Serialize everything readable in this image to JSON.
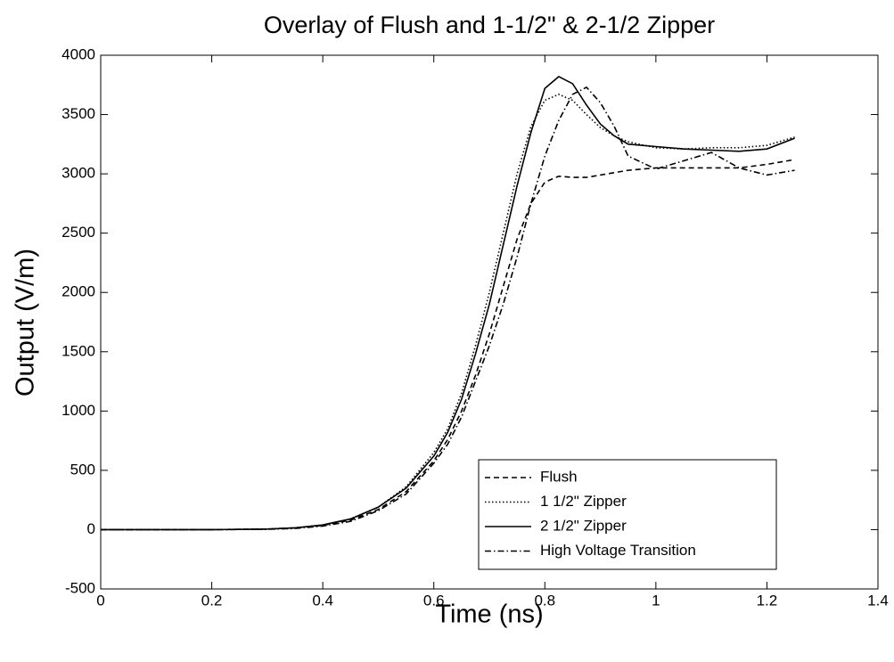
{
  "chart_data": {
    "type": "line",
    "title": "Overlay of Flush and 1-1/2\" & 2-1/2 Zipper",
    "x_label": "Time (ns)",
    "y_label": "Output (V/m)",
    "x": [
      0,
      0.1,
      0.2,
      0.3,
      0.35,
      0.4,
      0.45,
      0.5,
      0.55,
      0.6,
      0.625,
      0.65,
      0.675,
      0.7,
      0.725,
      0.75,
      0.775,
      0.8,
      0.825,
      0.85,
      0.875,
      0.9,
      0.925,
      0.95,
      1.0,
      1.05,
      1.1,
      1.15,
      1.2,
      1.25
    ],
    "series": [
      {
        "name": "Flush",
        "color": "#000000",
        "linestyle": "dashed",
        "values": [
          0,
          0,
          0,
          5,
          15,
          35,
          80,
          170,
          320,
          580,
          760,
          1000,
          1300,
          1650,
          2050,
          2450,
          2750,
          2930,
          2980,
          2970,
          2970,
          2990,
          3010,
          3030,
          3050,
          3050,
          3050,
          3050,
          3080,
          3120
        ]
      },
      {
        "name": "1 1/2\" Zipper",
        "color": "#000000",
        "linestyle": "dotted",
        "values": [
          0,
          0,
          0,
          5,
          15,
          40,
          90,
          190,
          360,
          650,
          850,
          1150,
          1550,
          2000,
          2500,
          3000,
          3400,
          3620,
          3670,
          3620,
          3500,
          3390,
          3320,
          3270,
          3220,
          3210,
          3220,
          3220,
          3240,
          3310
        ]
      },
      {
        "name": "2 1/2\" Zipper",
        "color": "#000000",
        "linestyle": "solid",
        "values": [
          0,
          0,
          0,
          5,
          15,
          40,
          90,
          190,
          350,
          620,
          820,
          1100,
          1480,
          1900,
          2400,
          2900,
          3350,
          3720,
          3820,
          3760,
          3580,
          3420,
          3320,
          3250,
          3230,
          3210,
          3200,
          3190,
          3210,
          3300
        ]
      },
      {
        "name": "High Voltage Transition",
        "color": "#000000",
        "linestyle": "dashdot",
        "values": [
          0,
          0,
          0,
          3,
          10,
          30,
          70,
          160,
          300,
          560,
          720,
          950,
          1250,
          1550,
          1900,
          2300,
          2750,
          3150,
          3450,
          3670,
          3730,
          3600,
          3400,
          3150,
          3040,
          3110,
          3180,
          3050,
          2990,
          3030
        ]
      }
    ],
    "xlim": [
      0,
      1.4
    ],
    "xticks": [
      0,
      0.2,
      0.4,
      0.6,
      0.8,
      1,
      1.2,
      1.4
    ],
    "ylim": [
      -500,
      4000
    ],
    "yticks": [
      -500,
      0,
      500,
      1000,
      1500,
      2000,
      2500,
      3000,
      3500,
      4000
    ],
    "grid": false,
    "legend": "lower right"
  }
}
